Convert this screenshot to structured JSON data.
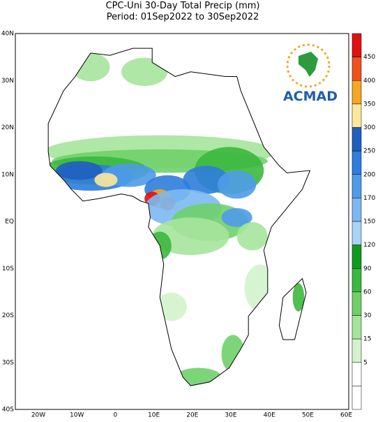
{
  "title": "CPC-Uni 30-Day Total Precip (mm)",
  "subtitle": "Period: 01Sep2022 to 30Sep2022",
  "map": {
    "lat_labels": [
      "40N",
      "30N",
      "20N",
      "10N",
      "EQ",
      "10S",
      "20S",
      "30S",
      "40S"
    ],
    "lon_labels": [
      "20W",
      "10W",
      "0",
      "10E",
      "20E",
      "30E",
      "40E",
      "50E",
      "60E"
    ]
  },
  "colorbar": {
    "labels": [
      450,
      400,
      350,
      300,
      250,
      200,
      170,
      150,
      120,
      90,
      60,
      30,
      15,
      5
    ],
    "colors": [
      "#e0110f",
      "#f0521e",
      "#f5a623",
      "#fde79a",
      "#1f5fbf",
      "#2f7ddc",
      "#4f9be8",
      "#7cb9f2",
      "#a9d3f8",
      "#0f9b1e",
      "#3cb83e",
      "#6fd06a",
      "#a6e49c",
      "#d2f3cb",
      "#ffffff",
      "#ffffff"
    ]
  },
  "logo": {
    "text": "ACMAD"
  }
}
